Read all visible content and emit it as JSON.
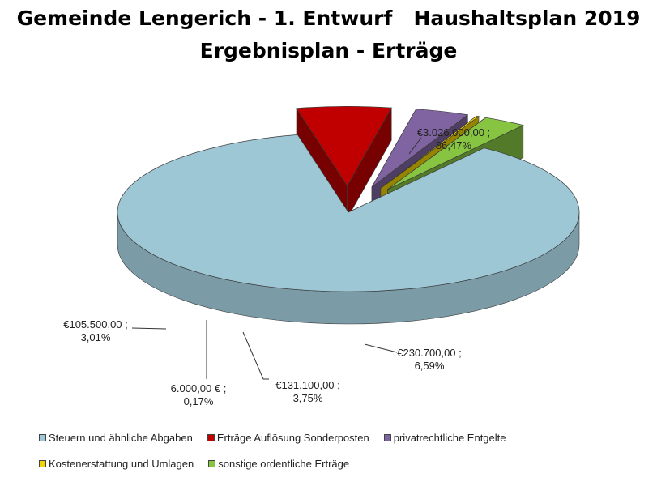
{
  "title_line1": "Gemeinde Lengerich - 1. Entwurf   Haushaltsplan 2019",
  "title_line2": "Ergebnisplan - Erträge",
  "chart_data": {
    "type": "pie",
    "title": "Gemeinde Lengerich - 1. Entwurf   Haushaltsplan 2019 — Ergebnisplan - Erträge",
    "three_d": true,
    "exploded": true,
    "currency": "€",
    "series": [
      {
        "name": "Steuern und ähnliche Abgaben",
        "value": 3026000.0,
        "percent": 86.47,
        "value_label": "€3.026.000,00 ;",
        "percent_label": "86,47%",
        "color": "#9ec7d6"
      },
      {
        "name": "Erträge Auflösung Sonderposten",
        "value": 230700.0,
        "percent": 6.59,
        "value_label": "€230.700,00 ;",
        "percent_label": "6,59%",
        "color": "#c00000"
      },
      {
        "name": "privatrechtliche Entgelte",
        "value": 131100.0,
        "percent": 3.75,
        "value_label": "€131.100,00 ;",
        "percent_label": "3,75%",
        "color": "#8064a2"
      },
      {
        "name": "Kostenerstattung und Umlagen",
        "value": 6000.0,
        "percent": 0.17,
        "value_label": "6.000,00 € ;",
        "percent_label": "0,17%",
        "color": "#f2d500"
      },
      {
        "name": "sonstige ordentliche Erträge",
        "value": 105500.0,
        "percent": 3.01,
        "value_label": "€105.500,00 ;",
        "percent_label": "3,01%",
        "color": "#86c442"
      }
    ],
    "legend_position": "bottom"
  }
}
